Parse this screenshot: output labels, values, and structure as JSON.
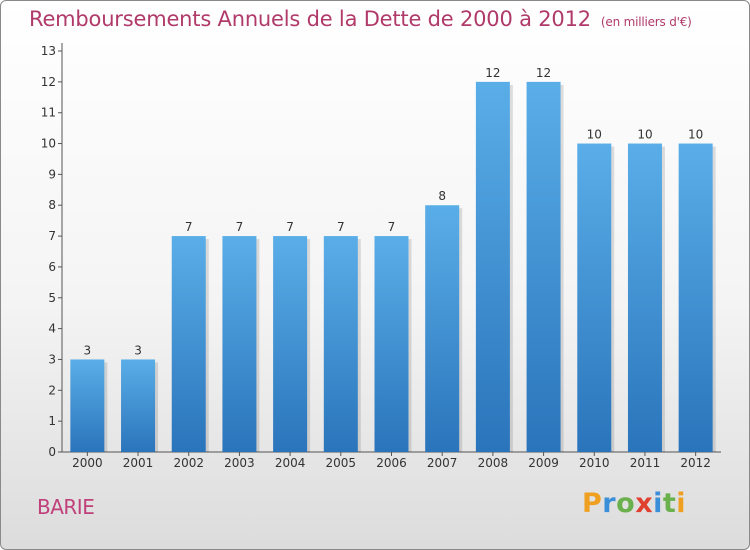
{
  "chart_data": {
    "type": "bar",
    "title": "Remboursements Annuels de la Dette de 2000 à 2012",
    "unit_note": "(en milliers d'€)",
    "categories": [
      "2000",
      "2001",
      "2002",
      "2003",
      "2004",
      "2005",
      "2006",
      "2007",
      "2008",
      "2009",
      "2010",
      "2011",
      "2012"
    ],
    "values": [
      3,
      3,
      7,
      7,
      7,
      7,
      7,
      8,
      12,
      12,
      10,
      10,
      10
    ],
    "ylim": [
      0,
      13
    ],
    "yticks": [
      0,
      1,
      2,
      3,
      4,
      5,
      6,
      7,
      8,
      9,
      10,
      11,
      12,
      13
    ],
    "grid": false,
    "bar_color": "#3d8fd6",
    "bar_color_top": "#5aaee8",
    "bar_color_bottom": "#2a74bb"
  },
  "location_label": "BARIE",
  "logo": {
    "letters": [
      "P",
      "r",
      "o",
      "x",
      "i",
      "t",
      "i"
    ],
    "colors": [
      "#f0a020",
      "#3a8fd8",
      "#6ab04c",
      "#e04030",
      "#3a8fd8",
      "#6ab04c",
      "#f0a020"
    ]
  }
}
